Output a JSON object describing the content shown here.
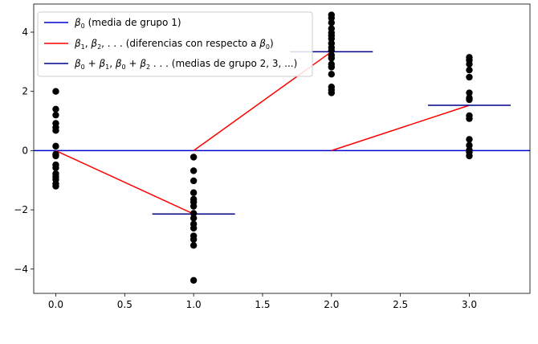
{
  "chart_data": {
    "type": "scatter",
    "title": "",
    "xlabel": "",
    "ylabel": "",
    "xlim": [
      -0.16,
      3.44
    ],
    "ylim": [
      -4.82,
      4.95
    ],
    "grid": false,
    "legend_position": "top-left",
    "x_ticks": [
      {
        "value": 0.0,
        "label": "0.0"
      },
      {
        "value": 0.5,
        "label": "0.5"
      },
      {
        "value": 1.0,
        "label": "1.0"
      },
      {
        "value": 1.5,
        "label": "1.5"
      },
      {
        "value": 2.0,
        "label": "2.0"
      },
      {
        "value": 2.5,
        "label": "2.5"
      },
      {
        "value": 3.0,
        "label": "3.0"
      }
    ],
    "y_ticks": [
      {
        "value": -4,
        "label": "−4"
      },
      {
        "value": -2,
        "label": "−2"
      },
      {
        "value": 0,
        "label": "0"
      },
      {
        "value": 2,
        "label": "2"
      },
      {
        "value": 4,
        "label": "4"
      }
    ],
    "groups": [
      {
        "x": 0,
        "values": [
          2.0,
          1.4,
          1.2,
          0.92,
          0.78,
          0.68,
          0.15,
          -0.12,
          -0.18,
          -0.48,
          -0.58,
          -0.78,
          -0.88,
          -0.98,
          -1.12,
          -1.2
        ]
      },
      {
        "x": 1,
        "values": [
          -0.22,
          -0.68,
          -1.02,
          -1.42,
          -1.64,
          -1.74,
          -1.88,
          -2.12,
          -2.28,
          -2.48,
          -2.62,
          -2.88,
          -3.0,
          -3.2,
          -4.38
        ]
      },
      {
        "x": 2,
        "values": [
          4.58,
          4.48,
          4.32,
          4.12,
          3.98,
          3.88,
          3.78,
          3.62,
          3.48,
          3.38,
          3.22,
          3.12,
          2.92,
          2.82,
          2.58,
          2.15,
          2.05,
          1.95
        ]
      },
      {
        "x": 3,
        "values": [
          3.15,
          3.05,
          2.92,
          2.72,
          2.48,
          1.95,
          1.78,
          1.72,
          1.18,
          1.08,
          0.38,
          0.18,
          0.02,
          -0.05,
          -0.18
        ]
      }
    ],
    "series": [
      {
        "name": "$\\beta_0$ (media de grupo 1)",
        "color": "#0000cd",
        "kind": "hline",
        "y": 0
      },
      {
        "name": "$\\beta_1, \\beta_2, ...$ (diferencias con respecto a $\\beta_0$)",
        "color": "#ff0000",
        "kind": "segments",
        "segments": [
          [
            [
              0,
              0
            ],
            [
              1,
              -2.14
            ]
          ],
          [
            [
              1,
              0
            ],
            [
              2,
              3.34
            ]
          ],
          [
            [
              2,
              0
            ],
            [
              3,
              1.53
            ]
          ]
        ]
      },
      {
        "name": "$\\beta_0 + \\beta_1, \\beta_0 + \\beta_2 ...$ (medias de grupo 2, 3, ...)",
        "color": "#00008b",
        "kind": "group-means",
        "segments": [
          [
            [
              0.7,
              -2.14
            ],
            [
              1.3,
              -2.14
            ]
          ],
          [
            [
              1.7,
              3.34
            ],
            [
              2.3,
              3.34
            ]
          ],
          [
            [
              2.7,
              1.53
            ],
            [
              3.3,
              1.53
            ]
          ]
        ]
      }
    ],
    "point_color": "#000000"
  },
  "legend": {
    "item1": {
      "symbol": "β",
      "sub": "0",
      "rest": " (media de grupo 1)"
    },
    "item2": {
      "b1": "β",
      "s1": "1",
      "c1": ", ",
      "b2": "β",
      "s2": "2",
      "dots": ", . . .",
      "text": "  (diferencias con respecto a ",
      "b3": "β",
      "s3": "0",
      "close": ")"
    },
    "item3": {
      "b1": "β",
      "s1": "0",
      "op1": " + ",
      "b2": "β",
      "s2": "1",
      "c1": ", ",
      "b3": "β",
      "s3": "0",
      "op2": " + ",
      "b4": "β",
      "s4": "2",
      "dots": " . . .",
      "text": "  (medias de grupo 2, 3, ...)"
    }
  }
}
